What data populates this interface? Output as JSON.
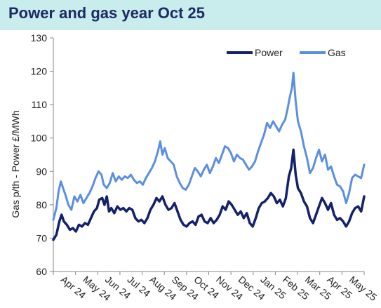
{
  "page": {
    "title": "Power and gas year Oct 25"
  },
  "colors": {
    "power": "#14216b",
    "gas": "#5b8fe0",
    "title_bg": "#c9ecec",
    "title_text": "#1d2b64"
  },
  "chart_data": {
    "type": "line",
    "title": "Power and gas year Oct 25",
    "ylabel": "Gas p/th - Power £/MWh",
    "xlabel": "",
    "ylim": [
      60,
      130
    ],
    "yticks": [
      60,
      70,
      80,
      90,
      100,
      110,
      120,
      130
    ],
    "grid": false,
    "legend_position": "top-right",
    "x_tick_labels": [
      "Apr 24",
      "May 24",
      "Jun 24",
      "Jul 24",
      "Aug 24",
      "Sep 24",
      "Oct 24",
      "Nov 24",
      "Dec 24",
      "Jan 25",
      "Feb 25",
      "Mar 25",
      "Apr 25",
      "May 25"
    ],
    "x_range": [
      "2024-03-29",
      "2025-05-16"
    ],
    "series": [
      {
        "name": "Power",
        "points": [
          [
            "2024-03-29",
            69.5
          ],
          [
            "2024-04-02",
            71
          ],
          [
            "2024-04-06",
            75
          ],
          [
            "2024-04-09",
            77
          ],
          [
            "2024-04-12",
            75
          ],
          [
            "2024-04-16",
            74
          ],
          [
            "2024-04-20",
            72.5
          ],
          [
            "2024-04-24",
            73
          ],
          [
            "2024-04-28",
            72
          ],
          [
            "2024-05-02",
            74
          ],
          [
            "2024-05-06",
            73.5
          ],
          [
            "2024-05-10",
            74.5
          ],
          [
            "2024-05-14",
            74
          ],
          [
            "2024-05-18",
            76
          ],
          [
            "2024-05-22",
            78
          ],
          [
            "2024-05-26",
            79
          ],
          [
            "2024-05-29",
            81.5
          ],
          [
            "2024-06-02",
            82
          ],
          [
            "2024-06-05",
            80
          ],
          [
            "2024-06-08",
            82.5
          ],
          [
            "2024-06-11",
            78
          ],
          [
            "2024-06-14",
            79
          ],
          [
            "2024-06-18",
            77.5
          ],
          [
            "2024-06-22",
            79.5
          ],
          [
            "2024-06-26",
            78.5
          ],
          [
            "2024-06-30",
            79
          ],
          [
            "2024-07-04",
            78
          ],
          [
            "2024-07-08",
            79
          ],
          [
            "2024-07-12",
            78.5
          ],
          [
            "2024-07-16",
            76
          ],
          [
            "2024-07-20",
            75
          ],
          [
            "2024-07-24",
            75.5
          ],
          [
            "2024-07-28",
            74.5
          ],
          [
            "2024-08-01",
            76
          ],
          [
            "2024-08-05",
            78.5
          ],
          [
            "2024-08-09",
            80
          ],
          [
            "2024-08-13",
            82
          ],
          [
            "2024-08-17",
            81
          ],
          [
            "2024-08-21",
            82.5
          ],
          [
            "2024-08-25",
            80
          ],
          [
            "2024-08-29",
            78.5
          ],
          [
            "2024-09-02",
            79
          ],
          [
            "2024-09-06",
            80.5
          ],
          [
            "2024-09-10",
            78
          ],
          [
            "2024-09-14",
            75.5
          ],
          [
            "2024-09-18",
            74
          ],
          [
            "2024-09-22",
            73.5
          ],
          [
            "2024-09-26",
            74.5
          ],
          [
            "2024-09-30",
            75
          ],
          [
            "2024-10-04",
            74
          ],
          [
            "2024-10-08",
            76.5
          ],
          [
            "2024-10-12",
            77
          ],
          [
            "2024-10-16",
            75
          ],
          [
            "2024-10-20",
            74.5
          ],
          [
            "2024-10-24",
            76
          ],
          [
            "2024-10-28",
            74.5
          ],
          [
            "2024-11-01",
            75.5
          ],
          [
            "2024-11-05",
            77
          ],
          [
            "2024-11-09",
            79.5
          ],
          [
            "2024-11-13",
            78.5
          ],
          [
            "2024-11-17",
            81
          ],
          [
            "2024-11-21",
            80
          ],
          [
            "2024-11-25",
            78.5
          ],
          [
            "2024-11-29",
            77
          ],
          [
            "2024-12-03",
            78
          ],
          [
            "2024-12-07",
            76
          ],
          [
            "2024-12-11",
            77.5
          ],
          [
            "2024-12-15",
            74.5
          ],
          [
            "2024-12-19",
            73.5
          ],
          [
            "2024-12-23",
            76
          ],
          [
            "2024-12-27",
            79
          ],
          [
            "2024-12-31",
            80.5
          ],
          [
            "2025-01-04",
            81
          ],
          [
            "2025-01-08",
            82
          ],
          [
            "2025-01-12",
            83.5
          ],
          [
            "2025-01-16",
            82.5
          ],
          [
            "2025-01-20",
            80.5
          ],
          [
            "2025-01-24",
            81.5
          ],
          [
            "2025-01-28",
            79.5
          ],
          [
            "2025-02-01",
            82
          ],
          [
            "2025-02-05",
            88.5
          ],
          [
            "2025-02-08",
            91
          ],
          [
            "2025-02-11",
            96.5
          ],
          [
            "2025-02-14",
            89
          ],
          [
            "2025-02-17",
            85
          ],
          [
            "2025-02-21",
            83.5
          ],
          [
            "2025-02-25",
            81
          ],
          [
            "2025-03-01",
            79.5
          ],
          [
            "2025-03-05",
            76
          ],
          [
            "2025-03-09",
            74.5
          ],
          [
            "2025-03-13",
            77
          ],
          [
            "2025-03-17",
            79.5
          ],
          [
            "2025-03-21",
            82
          ],
          [
            "2025-03-25",
            80.5
          ],
          [
            "2025-03-29",
            78.5
          ],
          [
            "2025-04-02",
            80.5
          ],
          [
            "2025-04-06",
            77
          ],
          [
            "2025-04-10",
            75.5
          ],
          [
            "2025-04-14",
            76
          ],
          [
            "2025-04-18",
            75
          ],
          [
            "2025-04-22",
            73.5
          ],
          [
            "2025-04-26",
            75
          ],
          [
            "2025-04-30",
            77.5
          ],
          [
            "2025-05-04",
            79
          ],
          [
            "2025-05-08",
            79.5
          ],
          [
            "2025-05-12",
            78
          ],
          [
            "2025-05-16",
            82.5
          ]
        ]
      },
      {
        "name": "Gas",
        "points": [
          [
            "2024-03-29",
            75.5
          ],
          [
            "2024-04-02",
            79
          ],
          [
            "2024-04-05",
            84
          ],
          [
            "2024-04-08",
            87
          ],
          [
            "2024-04-11",
            85
          ],
          [
            "2024-04-14",
            83
          ],
          [
            "2024-04-18",
            80
          ],
          [
            "2024-04-22",
            78.5
          ],
          [
            "2024-04-26",
            82.5
          ],
          [
            "2024-04-30",
            81
          ],
          [
            "2024-05-04",
            83
          ],
          [
            "2024-05-08",
            80.5
          ],
          [
            "2024-05-12",
            82
          ],
          [
            "2024-05-16",
            83.5
          ],
          [
            "2024-05-20",
            85.5
          ],
          [
            "2024-05-24",
            88
          ],
          [
            "2024-05-28",
            90
          ],
          [
            "2024-06-01",
            89
          ],
          [
            "2024-06-04",
            86
          ],
          [
            "2024-06-08",
            85
          ],
          [
            "2024-06-12",
            86.5
          ],
          [
            "2024-06-16",
            89.5
          ],
          [
            "2024-06-20",
            87
          ],
          [
            "2024-06-24",
            88.5
          ],
          [
            "2024-06-28",
            87.5
          ],
          [
            "2024-07-02",
            88.5
          ],
          [
            "2024-07-06",
            88
          ],
          [
            "2024-07-10",
            89
          ],
          [
            "2024-07-14",
            87.5
          ],
          [
            "2024-07-18",
            86.5
          ],
          [
            "2024-07-22",
            87
          ],
          [
            "2024-07-26",
            86
          ],
          [
            "2024-07-30",
            88
          ],
          [
            "2024-08-03",
            89.5
          ],
          [
            "2024-08-07",
            91
          ],
          [
            "2024-08-11",
            93
          ],
          [
            "2024-08-15",
            96
          ],
          [
            "2024-08-18",
            99
          ],
          [
            "2024-08-21",
            95
          ],
          [
            "2024-08-24",
            97
          ],
          [
            "2024-08-28",
            94
          ],
          [
            "2024-09-01",
            93
          ],
          [
            "2024-09-05",
            92
          ],
          [
            "2024-09-09",
            88.5
          ],
          [
            "2024-09-13",
            86.5
          ],
          [
            "2024-09-17",
            85
          ],
          [
            "2024-09-21",
            84.5
          ],
          [
            "2024-09-25",
            86
          ],
          [
            "2024-09-29",
            88.5
          ],
          [
            "2024-10-03",
            91
          ],
          [
            "2024-10-07",
            90
          ],
          [
            "2024-10-11",
            88.5
          ],
          [
            "2024-10-15",
            90.5
          ],
          [
            "2024-10-19",
            92
          ],
          [
            "2024-10-23",
            89.5
          ],
          [
            "2024-10-27",
            91.5
          ],
          [
            "2024-10-31",
            94
          ],
          [
            "2024-11-04",
            92.5
          ],
          [
            "2024-11-08",
            95
          ],
          [
            "2024-11-12",
            97.5
          ],
          [
            "2024-11-16",
            97
          ],
          [
            "2024-11-20",
            95.5
          ],
          [
            "2024-11-24",
            93
          ],
          [
            "2024-11-28",
            95
          ],
          [
            "2024-12-02",
            94
          ],
          [
            "2024-12-06",
            93.5
          ],
          [
            "2024-12-10",
            92
          ],
          [
            "2024-12-14",
            90.5
          ],
          [
            "2024-12-18",
            91.5
          ],
          [
            "2024-12-22",
            93
          ],
          [
            "2024-12-26",
            96
          ],
          [
            "2024-12-30",
            98.5
          ],
          [
            "2025-01-03",
            101
          ],
          [
            "2025-01-07",
            104.5
          ],
          [
            "2025-01-11",
            103
          ],
          [
            "2025-01-15",
            105
          ],
          [
            "2025-01-19",
            103.5
          ],
          [
            "2025-01-23",
            102
          ],
          [
            "2025-01-27",
            104
          ],
          [
            "2025-01-31",
            105.5
          ],
          [
            "2025-02-03",
            108.5
          ],
          [
            "2025-02-06",
            112
          ],
          [
            "2025-02-09",
            115
          ],
          [
            "2025-02-11",
            119.5
          ],
          [
            "2025-02-14",
            111
          ],
          [
            "2025-02-17",
            105
          ],
          [
            "2025-02-21",
            102
          ],
          [
            "2025-02-25",
            97.5
          ],
          [
            "2025-03-01",
            94
          ],
          [
            "2025-03-05",
            89.5
          ],
          [
            "2025-03-09",
            91
          ],
          [
            "2025-03-13",
            94
          ],
          [
            "2025-03-17",
            96.5
          ],
          [
            "2025-03-21",
            93
          ],
          [
            "2025-03-25",
            95
          ],
          [
            "2025-03-29",
            90.5
          ],
          [
            "2025-04-02",
            91.5
          ],
          [
            "2025-04-06",
            88.5
          ],
          [
            "2025-04-10",
            86
          ],
          [
            "2025-04-14",
            85.5
          ],
          [
            "2025-04-18",
            84
          ],
          [
            "2025-04-22",
            80.5
          ],
          [
            "2025-04-26",
            83.5
          ],
          [
            "2025-04-30",
            88
          ],
          [
            "2025-05-04",
            89
          ],
          [
            "2025-05-08",
            88.5
          ],
          [
            "2025-05-12",
            88
          ],
          [
            "2025-05-16",
            92
          ]
        ]
      }
    ]
  }
}
